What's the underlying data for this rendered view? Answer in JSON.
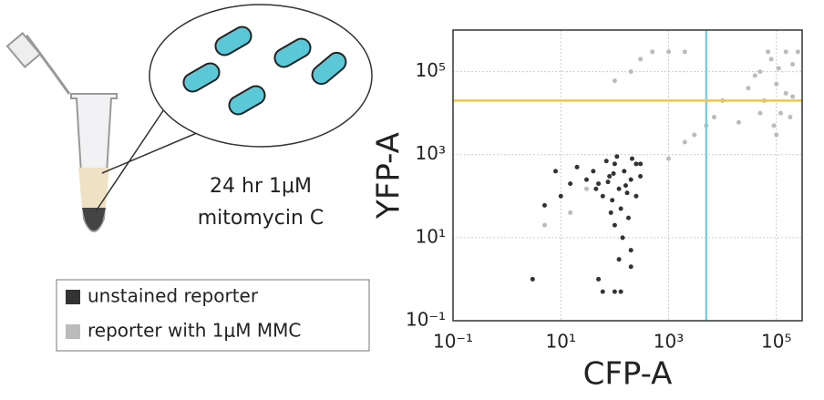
{
  "caption": [
    "24 hr 1μM",
    "mitomycin C"
  ],
  "chart_data": {
    "type": "scatter",
    "xlabel": "CFP-A",
    "ylabel": "YFP-A",
    "xscale": "log",
    "yscale": "log",
    "xlim": [
      0.1,
      300000
    ],
    "ylim": [
      0.1,
      1000000
    ],
    "xticks": [
      {
        "value": 0.1,
        "label": "10⁻¹"
      },
      {
        "value": 10,
        "label": "10¹"
      },
      {
        "value": 1000,
        "label": "10³"
      },
      {
        "value": 100000,
        "label": "10⁵"
      }
    ],
    "yticks": [
      {
        "value": 0.1,
        "label": "10⁻¹"
      },
      {
        "value": 10,
        "label": "10¹"
      },
      {
        "value": 1000,
        "label": "10³"
      },
      {
        "value": 100000,
        "label": "10⁵"
      }
    ],
    "grid": true,
    "vlines": [
      {
        "value": 5000,
        "color": "#7fcfd8"
      }
    ],
    "hlines": [
      {
        "value": 20000,
        "color": "#f5c542"
      }
    ],
    "series": [
      {
        "name": "unstained reporter",
        "color": "#333333",
        "x": [
          50,
          80,
          120,
          150,
          200,
          100,
          60,
          30,
          20,
          250,
          90,
          130,
          180,
          110,
          70,
          40,
          15,
          300,
          160,
          100,
          140,
          200,
          120,
          10,
          5,
          8,
          3,
          50,
          100,
          130,
          60,
          200,
          250,
          300,
          45,
          75,
          95,
          210,
          170,
          85
        ],
        "values": [
          200,
          300,
          150,
          400,
          250,
          600,
          100,
          250,
          500,
          100,
          80,
          50,
          30,
          900,
          700,
          400,
          200,
          600,
          180,
          20,
          10,
          5,
          3,
          100,
          60,
          400,
          1,
          1,
          0.5,
          0.5,
          0.5,
          2,
          600,
          300,
          150,
          220,
          350,
          800,
          120,
          40
        ]
      },
      {
        "name": "reporter with 1μM MMC",
        "color": "#bbbbbb",
        "x": [
          50000,
          80000,
          100000,
          150000,
          60000,
          120000,
          200000,
          40000,
          90000,
          250000,
          70000,
          30000,
          150000,
          180000,
          110000,
          50000,
          200000,
          100000,
          20000,
          5000,
          2000,
          1000,
          3000,
          7000,
          10000,
          300,
          500,
          1000,
          2000,
          15,
          5,
          30,
          100,
          200
        ],
        "values": [
          100000,
          200000,
          50000,
          300000,
          20000,
          10000,
          150000,
          80000,
          5000,
          300000,
          300000,
          40000,
          30000,
          8000,
          120000,
          10000,
          25000,
          3000,
          6000,
          5000,
          2000,
          800,
          3000,
          8000,
          20000,
          200000,
          300000,
          300000,
          300000,
          40,
          20,
          150,
          60000,
          100000
        ]
      }
    ]
  }
}
